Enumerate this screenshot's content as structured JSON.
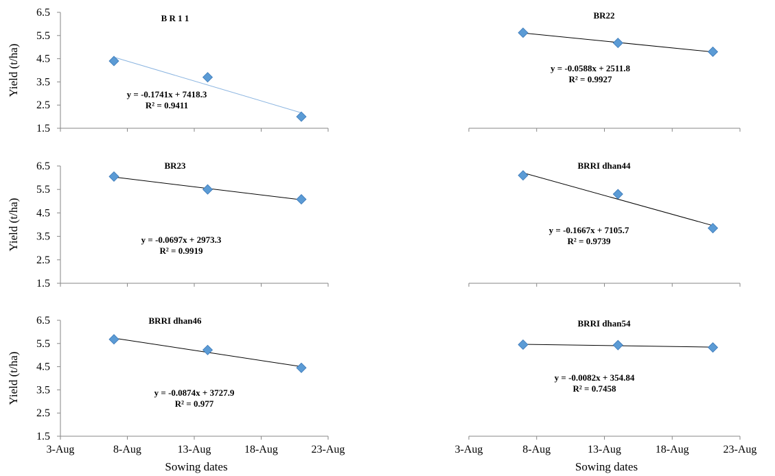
{
  "figure": {
    "y_axis_title": "Yield (t/ha)",
    "x_axis_title": "Sowing dates"
  },
  "colors": {
    "marker": "#5b9bd5",
    "marker_edge": "#3a78b8",
    "trend_blue": "#8ab4e0",
    "trend_black": "#000000",
    "axis": "#868686"
  },
  "chart_data": [
    {
      "type": "scatter",
      "title": "B R 1 1",
      "x": [
        "7-Aug",
        "14-Aug",
        "21-Aug"
      ],
      "y": [
        4.4,
        3.7,
        2.0
      ],
      "trendline": {
        "equation": "y = -0.1741x + 7418.3",
        "r2": "R² = 0.9411",
        "color": "trend_blue"
      },
      "xlim": [
        "3-Aug",
        "23-Aug"
      ],
      "ylim": [
        1.5,
        6.5
      ],
      "yticks": [
        "1.5",
        "2.5",
        "3.5",
        "4.5",
        "5.5",
        "6.5"
      ],
      "xticks": [],
      "ylabel": "Yield (t/ha)",
      "xlabel": ""
    },
    {
      "type": "scatter",
      "title": "BR22",
      "x": [
        "7-Aug",
        "14-Aug",
        "21-Aug"
      ],
      "y": [
        5.62,
        5.18,
        4.8
      ],
      "trendline": {
        "equation": "y = -0.0588x + 2511.8",
        "r2": "R² = 0.9927",
        "color": "trend_black"
      },
      "xlim": [
        "3-Aug",
        "23-Aug"
      ],
      "ylim": [
        1.5,
        6.5
      ],
      "yticks": [],
      "xticks": [],
      "ylabel": "",
      "xlabel": ""
    },
    {
      "type": "scatter",
      "title": "BR23",
      "x": [
        "7-Aug",
        "14-Aug",
        "21-Aug"
      ],
      "y": [
        6.05,
        5.5,
        5.08
      ],
      "trendline": {
        "equation": "y = -0.0697x + 2973.3",
        "r2": "R² = 0.9919",
        "color": "trend_black"
      },
      "xlim": [
        "3-Aug",
        "23-Aug"
      ],
      "ylim": [
        1.5,
        6.5
      ],
      "yticks": [
        "1.5",
        "2.5",
        "3.5",
        "4.5",
        "5.5",
        "6.5"
      ],
      "xticks": [],
      "ylabel": "Yield (t/ha)",
      "xlabel": ""
    },
    {
      "type": "scatter",
      "title": "BRRI dhan44",
      "x": [
        "7-Aug",
        "14-Aug",
        "21-Aug"
      ],
      "y": [
        6.1,
        5.3,
        3.85
      ],
      "trendline": {
        "equation": "y = -0.1667x + 7105.7",
        "r2": "R² = 0.9739",
        "color": "trend_black"
      },
      "xlim": [
        "3-Aug",
        "23-Aug"
      ],
      "ylim": [
        1.5,
        6.5
      ],
      "yticks": [],
      "xticks": [],
      "ylabel": "",
      "xlabel": ""
    },
    {
      "type": "scatter",
      "title": "BRRI dhan46",
      "x": [
        "7-Aug",
        "14-Aug",
        "21-Aug"
      ],
      "y": [
        5.68,
        5.22,
        4.45
      ],
      "trendline": {
        "equation": "y = -0.0874x + 3727.9",
        "r2": "R² = 0.977",
        "color": "trend_black"
      },
      "xlim": [
        "3-Aug",
        "23-Aug"
      ],
      "ylim": [
        1.5,
        6.5
      ],
      "yticks": [
        "1.5",
        "2.5",
        "3.5",
        "4.5",
        "5.5",
        "6.5"
      ],
      "xticks": [
        "3-Aug",
        "8-Aug",
        "13-Aug",
        "18-Aug",
        "23-Aug"
      ],
      "ylabel": "Yield (t/ha)",
      "xlabel": "Sowing dates"
    },
    {
      "type": "scatter",
      "title": "BRRI dhan54",
      "x": [
        "7-Aug",
        "14-Aug",
        "21-Aug"
      ],
      "y": [
        5.45,
        5.43,
        5.33
      ],
      "trendline": {
        "equation": "y = -0.0082x + 354.84",
        "r2": "R² = 0.7458",
        "color": "trend_black"
      },
      "xlim": [
        "3-Aug",
        "23-Aug"
      ],
      "ylim": [
        1.5,
        6.5
      ],
      "yticks": [],
      "xticks": [
        "3-Aug",
        "8-Aug",
        "13-Aug",
        "18-Aug",
        "23-Aug"
      ],
      "ylabel": "",
      "xlabel": "Sowing dates"
    }
  ]
}
